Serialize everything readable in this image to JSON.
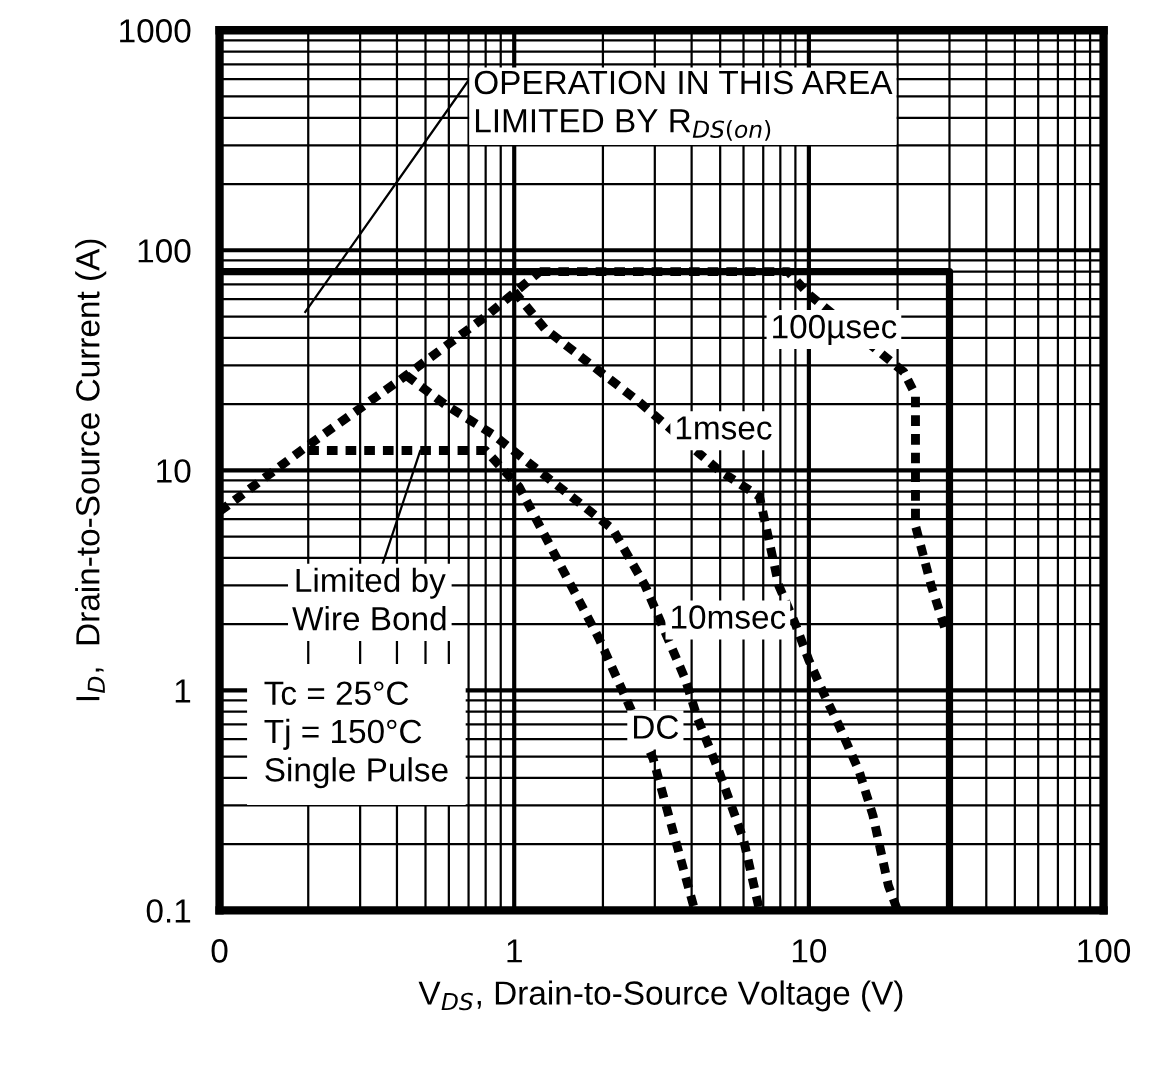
{
  "chart_data": {
    "type": "line",
    "xlabel": "V$_{DS}$, Drain-to-Source Voltage (V)",
    "ylabel": "I$_{D}$,  Drain-to-Source Current (A)",
    "log": "xy",
    "grid": true,
    "marker": "none",
    "line_style": "dashed",
    "xlim": [
      0.1,
      100
    ],
    "ylim": [
      0.1,
      1000
    ],
    "xticks": [
      {
        "value": 0.1,
        "label": "0"
      },
      1,
      10,
      100
    ],
    "yticks": [
      0.1,
      1,
      10,
      100,
      1000
    ],
    "series": [
      {
        "color": "#000000",
        "line_style": "solid",
        "x": [
          0.1,
          30,
          30
        ],
        "values": [
          80,
          80,
          0.1
        ]
      },
      {
        "color": "#000000",
        "x": [
          0.1,
          0.2,
          0.43,
          0.8,
          1.22
        ],
        "values": [
          6.5,
          13,
          27,
          50,
          80
        ]
      },
      {
        "color": "#000000",
        "x": [
          1.22,
          8.5,
          10,
          21,
          23,
          23,
          26,
          29
        ],
        "values": [
          80,
          80,
          63,
          28,
          22,
          5.6,
          3,
          1.9
        ]
      },
      {
        "color": "#000000",
        "x": [
          1.0,
          1.27,
          2.66,
          4.95,
          6.8,
          7.9,
          9.0,
          10,
          11.1,
          12.6,
          14.8,
          16.5,
          18.6,
          20
        ],
        "values": [
          65,
          44,
          20.4,
          10,
          7.6,
          3.0,
          2.0,
          1.37,
          1.0,
          0.7,
          0.43,
          0.27,
          0.13,
          0.1
        ]
      },
      {
        "color": "#000000",
        "x": [
          0.43,
          0.58,
          0.85,
          2.16,
          2.78,
          3.8,
          4.2,
          4.95,
          6.0,
          6.8
        ],
        "values": [
          27,
          20,
          14.5,
          5.4,
          3.0,
          1.13,
          0.74,
          0.43,
          0.21,
          0.1
        ]
      },
      {
        "color": "#000000",
        "x": [
          0.2,
          0.8,
          1.04,
          1.94,
          2.96,
          4.1
        ],
        "values": [
          12.3,
          12.3,
          8.4,
          1.72,
          0.49,
          0.1
        ]
      }
    ],
    "annotations": [
      "OPERATION IN THIS AREA\nLIMITED BY R$_{DS(on)}$",
      {
        "text": "Limited by\nWire Bond",
        "x": 0.48,
        "y": 12.3
      },
      "Tc = 25°C\nTj = 150°C\nSingle Pulse",
      "100µsec",
      "1msec",
      "10msec",
      "DC"
    ]
  }
}
